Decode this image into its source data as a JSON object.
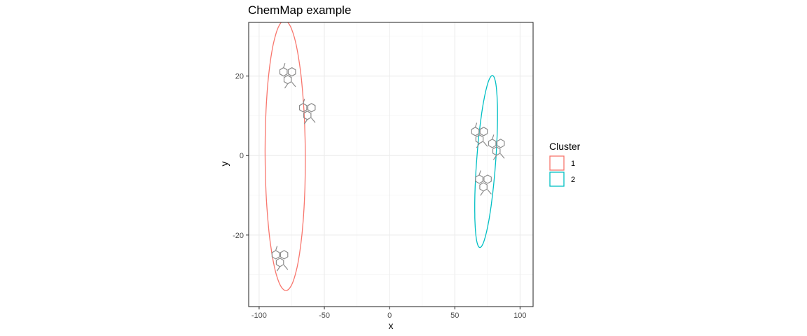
{
  "chart_data": {
    "type": "scatter",
    "title": "ChemMap example",
    "xlabel": "x",
    "ylabel": "y",
    "xlim": [
      -108,
      110
    ],
    "ylim": [
      -38,
      33.5
    ],
    "x_ticks": [
      -100,
      -50,
      0,
      50,
      100
    ],
    "y_ticks": [
      -20,
      0,
      20
    ],
    "x_tick_labels": [
      "-100",
      "-50",
      "0",
      "50",
      "100"
    ],
    "y_tick_labels": [
      "-20",
      "0",
      "20"
    ],
    "grid": true,
    "legend": {
      "title": "Cluster",
      "placement": "right"
    },
    "clusters": [
      {
        "name": "1",
        "color": "#F8766D",
        "ellipse": {
          "cx": -80,
          "cy": 0,
          "rx": 28,
          "ry": 34,
          "angle_deg": 5
        },
        "points": [
          {
            "x": -77,
            "y": 20
          },
          {
            "x": -62,
            "y": 11
          },
          {
            "x": -83,
            "y": -26
          }
        ]
      },
      {
        "name": "2",
        "color": "#00BFC4",
        "ellipse": {
          "cx": 74,
          "cy": -1.5,
          "rx": 24,
          "ry": 12,
          "angle_deg": 60
        },
        "points": [
          {
            "x": 70,
            "y": 5
          },
          {
            "x": 83,
            "y": 2
          },
          {
            "x": 73,
            "y": -7
          }
        ]
      }
    ]
  }
}
